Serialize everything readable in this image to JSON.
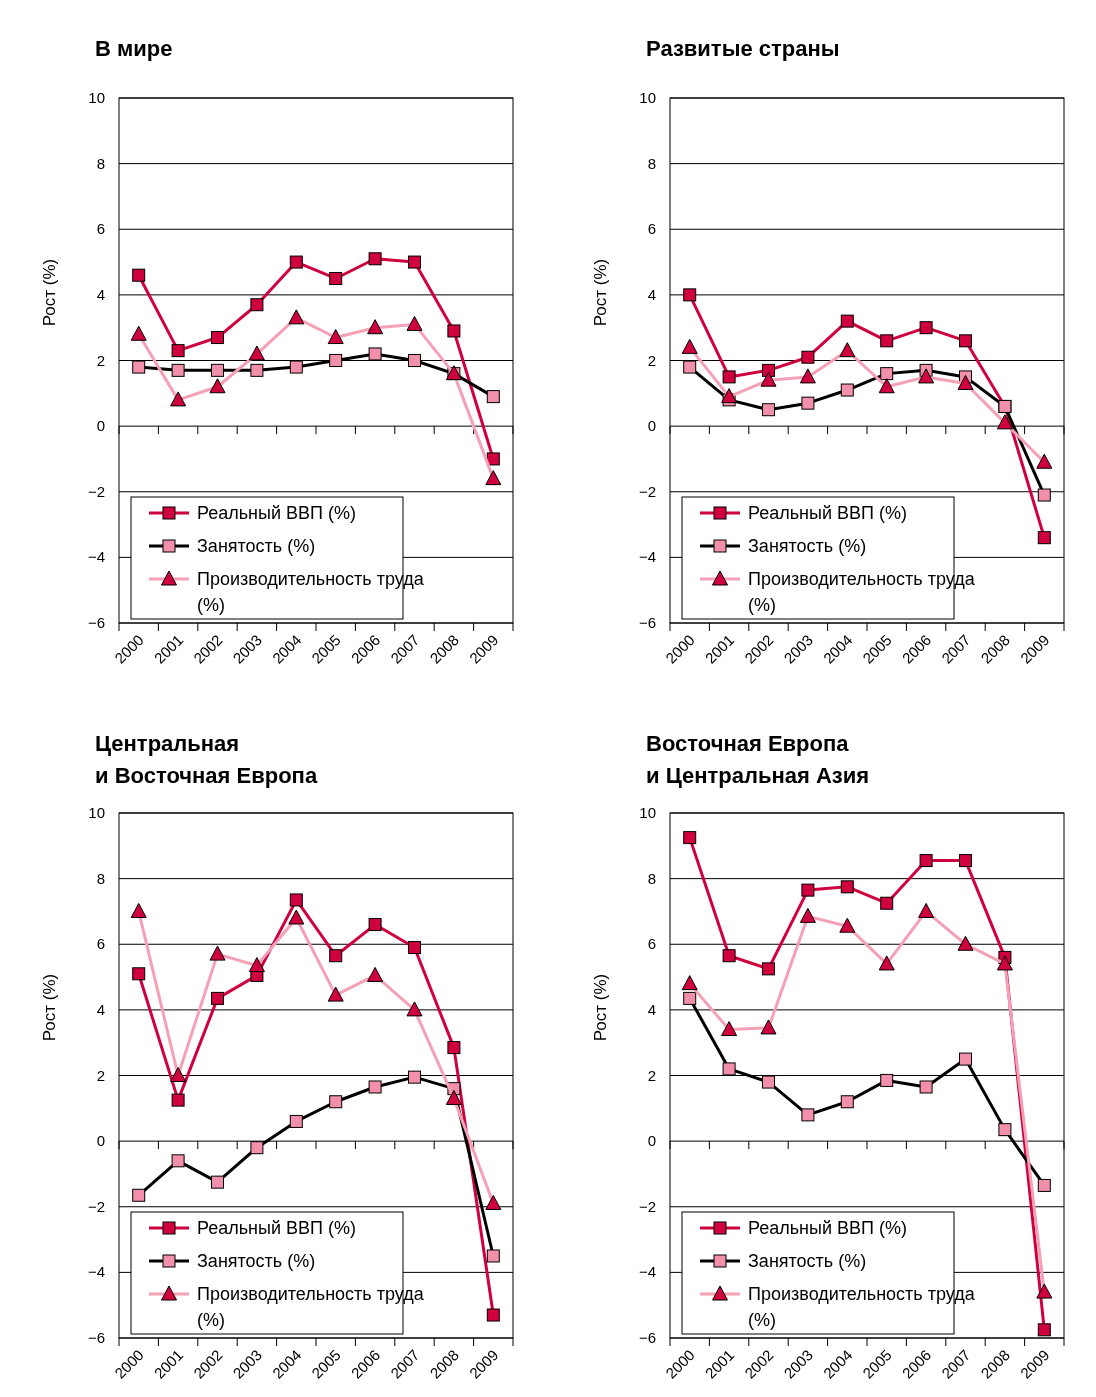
{
  "chart_data": [
    {
      "type": "line",
      "title": "В мире",
      "ylabel": "Рост (%)",
      "categories": [
        "2000",
        "2001",
        "2002",
        "2003",
        "2004",
        "2005",
        "2006",
        "2007",
        "2008",
        "2009"
      ],
      "ylim": [
        -6,
        10
      ],
      "yticks": [
        {
          "value": -6,
          "label": "−6"
        },
        {
          "value": -4,
          "label": "−4"
        },
        {
          "value": -2,
          "label": "−2"
        },
        0,
        2,
        4,
        6,
        8,
        10
      ],
      "grid": "y",
      "legend": "bottom left",
      "series": [
        {
          "name": "Реальный ВВП (%)",
          "color": "#d0003f",
          "marker": "square",
          "colors": [
            "#d0003f",
            "#d0003f",
            "#d0003f",
            "#d0003f",
            "#d0003f",
            "#d0003f",
            "#d0003f",
            "#d0003f",
            "#d0003f",
            "#d0003f"
          ],
          "values": [
            4.6,
            2.3,
            2.7,
            3.7,
            5.0,
            4.5,
            5.1,
            5.0,
            2.9,
            -1.0
          ]
        },
        {
          "name": "Занятость (%)",
          "color": "#000000",
          "marker": "square",
          "colors": [
            "#f28fab",
            "#f28fab",
            "#f28fab",
            "#f28fab",
            "#f28fab",
            "#f28fab",
            "#f28fab",
            "#f28fab",
            "#f28fab",
            "#f28fab"
          ],
          "values": [
            1.8,
            1.7,
            1.7,
            1.7,
            1.8,
            2.0,
            2.2,
            2.0,
            1.6,
            0.9
          ]
        },
        {
          "name": "Производительность труда (%)",
          "color": "#f4a0b5",
          "marker": "triangle",
          "colors": [
            "#d0003f",
            "#d0003f",
            "#d0003f",
            "#d0003f",
            "#d0003f",
            "#d0003f",
            "#d0003f",
            "#d0003f",
            "#d0003f",
            "#d0003f"
          ],
          "values": [
            2.8,
            0.8,
            1.2,
            2.2,
            3.3,
            2.7,
            3.0,
            3.1,
            1.6,
            -1.6
          ]
        }
      ]
    },
    {
      "type": "line",
      "title": "Развитые страны",
      "ylabel": "Рост (%)",
      "categories": [
        "2000",
        "2001",
        "2002",
        "2003",
        "2004",
        "2005",
        "2006",
        "2007",
        "2008",
        "2009"
      ],
      "ylim": [
        -6,
        10
      ],
      "yticks": [
        {
          "value": -6,
          "label": "−6"
        },
        {
          "value": -4,
          "label": "−4"
        },
        {
          "value": -2,
          "label": "−2"
        },
        0,
        2,
        4,
        6,
        8,
        10
      ],
      "grid": "y",
      "legend": "bottom left",
      "series": [
        {
          "name": "Реальный ВВП (%)",
          "color": "#d0003f",
          "marker": "square",
          "colors": [
            "#d0003f",
            "#d0003f",
            "#d0003f",
            "#d0003f",
            "#d0003f",
            "#d0003f",
            "#d0003f",
            "#d0003f",
            "#d0003f",
            "#d0003f"
          ],
          "values": [
            4.0,
            1.5,
            1.7,
            2.1,
            3.2,
            2.6,
            3.0,
            2.6,
            0.6,
            -3.4
          ]
        },
        {
          "name": "Занятость (%)",
          "color": "#000000",
          "marker": "square",
          "colors": [
            "#f28fab",
            "#f28fab",
            "#f28fab",
            "#f28fab",
            "#f28fab",
            "#f28fab",
            "#f28fab",
            "#f28fab",
            "#f28fab",
            "#f28fab"
          ],
          "values": [
            1.8,
            0.8,
            0.5,
            0.7,
            1.1,
            1.6,
            1.7,
            1.5,
            0.6,
            -2.1
          ]
        },
        {
          "name": "Производительность труда (%)",
          "color": "#f4a0b5",
          "marker": "triangle",
          "colors": [
            "#d0003f",
            "#d0003f",
            "#d0003f",
            "#d0003f",
            "#d0003f",
            "#d0003f",
            "#d0003f",
            "#d0003f",
            "#d0003f",
            "#d0003f"
          ],
          "values": [
            2.4,
            0.9,
            1.4,
            1.5,
            2.3,
            1.2,
            1.5,
            1.3,
            0.1,
            -1.1
          ]
        }
      ]
    },
    {
      "type": "line",
      "title": "Центральная\nи Восточная Европа",
      "ylabel": "Рост (%)",
      "categories": [
        "2000",
        "2001",
        "2002",
        "2003",
        "2004",
        "2005",
        "2006",
        "2007",
        "2008",
        "2009"
      ],
      "ylim": [
        -6,
        10
      ],
      "yticks": [
        {
          "value": -6,
          "label": "−6"
        },
        {
          "value": -4,
          "label": "−4"
        },
        {
          "value": -2,
          "label": "−2"
        },
        0,
        2,
        4,
        6,
        8,
        10
      ],
      "grid": "y",
      "legend": "bottom left",
      "series": [
        {
          "name": "Реальный ВВП (%)",
          "color": "#d0003f",
          "marker": "square",
          "colors": [
            "#d0003f",
            "#d0003f",
            "#d0003f",
            "#d0003f",
            "#d0003f",
            "#d0003f",
            "#d0003f",
            "#d0003f",
            "#d0003f",
            "#d0003f"
          ],
          "values": [
            5.1,
            1.25,
            4.35,
            5.05,
            7.35,
            5.65,
            6.6,
            5.9,
            2.85,
            -5.3
          ]
        },
        {
          "name": "Занятость (%)",
          "color": "#000000",
          "marker": "square",
          "colors": [
            "#f28fab",
            "#f28fab",
            "#f28fab",
            "#f28fab",
            "#f28fab",
            "#f28fab",
            "#f28fab",
            "#f28fab",
            "#f28fab",
            "#f28fab"
          ],
          "values": [
            -1.65,
            -0.6,
            -1.25,
            -0.2,
            0.6,
            1.2,
            1.65,
            1.95,
            1.6,
            -3.5
          ]
        },
        {
          "name": "Производительность труда (%)",
          "color": "#f4a0b5",
          "marker": "triangle",
          "colors": [
            "#d0003f",
            "#d0003f",
            "#d0003f",
            "#d0003f",
            "#d0003f",
            "#d0003f",
            "#d0003f",
            "#d0003f",
            "#d0003f",
            "#d0003f"
          ],
          "values": [
            7.0,
            2.0,
            5.7,
            5.35,
            6.8,
            4.45,
            5.05,
            4.0,
            1.3,
            -1.9
          ]
        }
      ]
    },
    {
      "type": "line",
      "title": "Восточная Европа\nи Центральная Азия",
      "ylabel": "Рост (%)",
      "categories": [
        "2000",
        "2001",
        "2002",
        "2003",
        "2004",
        "2005",
        "2006",
        "2007",
        "2008",
        "2009"
      ],
      "ylim": [
        -6,
        10
      ],
      "yticks": [
        {
          "value": -6,
          "label": "−6"
        },
        {
          "value": -4,
          "label": "−4"
        },
        {
          "value": -2,
          "label": "−2"
        },
        0,
        2,
        4,
        6,
        8,
        10
      ],
      "grid": "y",
      "legend": "bottom left",
      "series": [
        {
          "name": "Реальный ВВП (%)",
          "color": "#d0003f",
          "marker": "square",
          "colors": [
            "#d0003f",
            "#d0003f",
            "#d0003f",
            "#d0003f",
            "#d0003f",
            "#d0003f",
            "#d0003f",
            "#d0003f",
            "#d0003f",
            "#d0003f"
          ],
          "values": [
            9.25,
            5.65,
            5.25,
            7.65,
            7.75,
            7.25,
            8.55,
            8.55,
            5.6,
            -5.75
          ]
        },
        {
          "name": "Занятость (%)",
          "color": "#000000",
          "marker": "square",
          "colors": [
            "#f28fab",
            "#f28fab",
            "#f28fab",
            "#f28fab",
            "#f28fab",
            "#f28fab",
            "#f28fab",
            "#f28fab",
            "#f28fab",
            "#f28fab"
          ],
          "values": [
            4.35,
            2.2,
            1.8,
            0.8,
            1.2,
            1.85,
            1.65,
            2.5,
            0.35,
            -1.35
          ]
        },
        {
          "name": "Производительность труда (%)",
          "color": "#f4a0b5",
          "marker": "triangle",
          "colors": [
            "#d0003f",
            "#d0003f",
            "#d0003f",
            "#d0003f",
            "#d0003f",
            "#d0003f",
            "#d0003f",
            "#d0003f",
            "#d0003f",
            "#d0003f"
          ],
          "values": [
            4.8,
            3.4,
            3.45,
            6.85,
            6.55,
            5.4,
            7.0,
            6.0,
            5.4,
            -4.6
          ]
        }
      ]
    }
  ]
}
